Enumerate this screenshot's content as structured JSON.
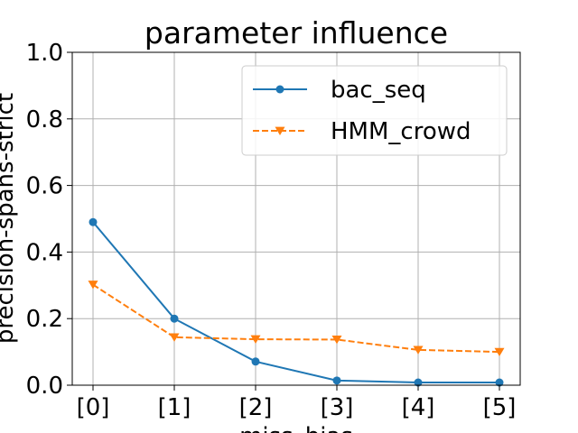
{
  "chart_data": {
    "type": "line",
    "title": "parameter influence",
    "xlabel": "miss_bias",
    "ylabel": "precision-spans-strict",
    "categories": [
      "[0]",
      "[1]",
      "[2]",
      "[3]",
      "[4]",
      "[5]"
    ],
    "ylim": [
      0,
      1
    ],
    "yticks": [
      "0.0",
      "0.2",
      "0.4",
      "0.6",
      "0.8",
      "1.0"
    ],
    "grid": true,
    "legend_position": "top-right",
    "series": [
      {
        "name": "bac_seq",
        "values": [
          0.49,
          0.2,
          0.071,
          0.014,
          0.008,
          0.008
        ],
        "color": "#1f77b4",
        "marker": "circle",
        "line": "solid"
      },
      {
        "name": "HMM_crowd",
        "values": [
          0.302,
          0.144,
          0.138,
          0.137,
          0.106,
          0.1
        ],
        "color": "#ff7f0e",
        "marker": "triangle-down",
        "line": "dashed"
      }
    ]
  }
}
